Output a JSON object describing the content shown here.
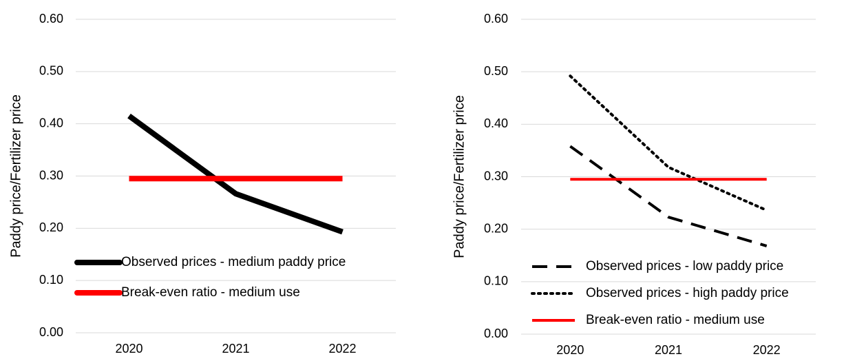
{
  "chart_data": [
    {
      "type": "line",
      "y_label": "Paddy price/Fertilizer price",
      "categories": [
        "2020",
        "2021",
        "2022"
      ],
      "series": [
        {
          "name": "Observed prices - medium paddy price",
          "color": "#000000",
          "style": "solid",
          "values": [
            0.415,
            0.266,
            0.193
          ]
        },
        {
          "name": "Break-even ratio - medium use",
          "color": "#ff0000",
          "style": "solid",
          "values": [
            0.295,
            0.295,
            0.295
          ]
        }
      ],
      "ylim": [
        0,
        0.6
      ],
      "yticks": [
        {
          "value": 0,
          "label": "0.00"
        },
        {
          "value": 0.1,
          "label": "0.10"
        },
        {
          "value": 0.2,
          "label": "0.20"
        },
        {
          "value": 0.3,
          "label": "0.30"
        },
        {
          "value": 0.4,
          "label": "0.40"
        },
        {
          "value": 0.5,
          "label": "0.50"
        },
        {
          "value": 0.6,
          "label": "0.60"
        }
      ],
      "grid": true
    },
    {
      "type": "line",
      "y_label": "Paddy price/Fertilizer price",
      "categories": [
        "2020",
        "2021",
        "2022"
      ],
      "series": [
        {
          "name": "Observed prices - low paddy price",
          "color": "#000000",
          "style": "dashed",
          "values": [
            0.358,
            0.223,
            0.168
          ]
        },
        {
          "name": "Observed prices - high paddy price",
          "color": "#000000",
          "style": "dotted",
          "values": [
            0.492,
            0.318,
            0.236
          ]
        },
        {
          "name": "Break-even ratio - medium use",
          "color": "#ff0000",
          "style": "solid",
          "values": [
            0.295,
            0.295,
            0.295
          ]
        }
      ],
      "ylim": [
        0,
        0.6
      ],
      "yticks": [
        {
          "value": 0,
          "label": "0.00"
        },
        {
          "value": 0.1,
          "label": "0.10"
        },
        {
          "value": 0.2,
          "label": "0.20"
        },
        {
          "value": 0.3,
          "label": "0.30"
        },
        {
          "value": 0.4,
          "label": "0.40"
        },
        {
          "value": 0.5,
          "label": "0.50"
        },
        {
          "value": 0.6,
          "label": "0.60"
        }
      ],
      "grid": true
    }
  ]
}
